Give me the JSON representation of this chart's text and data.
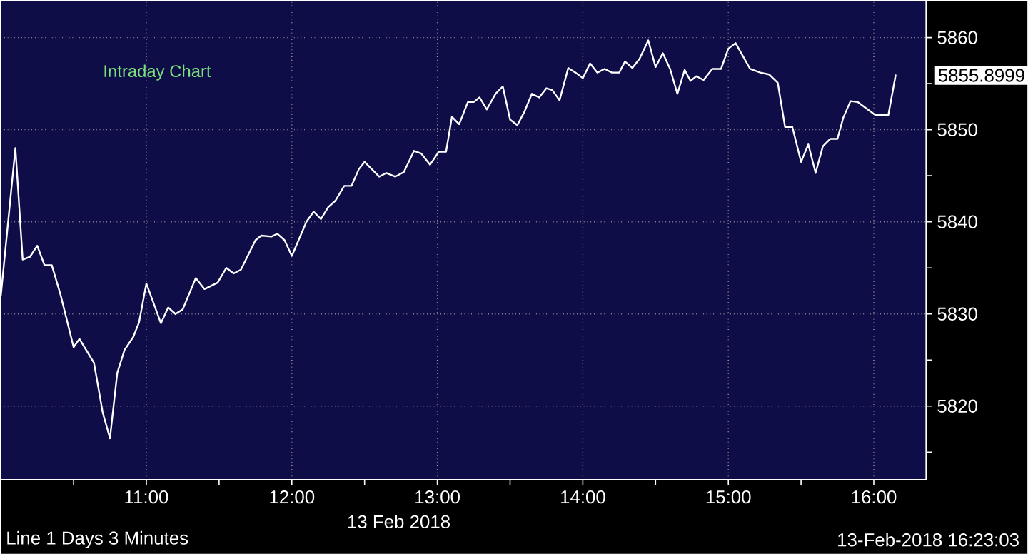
{
  "chart_data": {
    "type": "line",
    "title": "Intraday Chart",
    "xlabel": "13 Feb 2018",
    "annotations": [
      "5855.8999",
      "Line 1 Days 3 Minutes",
      "13-Feb-2018 16:23:03"
    ],
    "series": [
      {
        "color": "#ffffff",
        "x": [
          10.0,
          10.1,
          10.15,
          10.2,
          10.25,
          10.3,
          10.35,
          10.41,
          10.5,
          10.54,
          10.64,
          10.7,
          10.75,
          10.8,
          10.85,
          10.91,
          10.95,
          11.0,
          11.1,
          11.15,
          11.2,
          11.25,
          11.34,
          11.4,
          11.49,
          11.55,
          11.6,
          11.65,
          11.75,
          11.79,
          11.86,
          11.9,
          11.95,
          12.0,
          12.1,
          12.15,
          12.2,
          12.25,
          12.3,
          12.36,
          12.41,
          12.46,
          12.5,
          12.6,
          12.65,
          12.71,
          12.77,
          12.84,
          12.89,
          12.95,
          13.01,
          13.06,
          13.1,
          13.15,
          13.21,
          13.25,
          13.29,
          13.34,
          13.4,
          13.45,
          13.5,
          13.55,
          13.6,
          13.65,
          13.7,
          13.75,
          13.79,
          13.84,
          13.9,
          13.95,
          14.0,
          14.05,
          14.1,
          14.15,
          14.2,
          14.25,
          14.29,
          14.34,
          14.39,
          14.45,
          14.5,
          14.55,
          14.6,
          14.65,
          14.7,
          14.74,
          14.78,
          14.83,
          14.89,
          14.95,
          15.0,
          15.05,
          15.1,
          15.15,
          15.22,
          15.28,
          15.34,
          15.39,
          15.44,
          15.5,
          15.55,
          15.6,
          15.65,
          15.7,
          15.75,
          15.79,
          15.84,
          15.89,
          16.01,
          16.1,
          16.15
        ],
        "values": [
          5832.0,
          5848.0,
          5835.9,
          5836.2,
          5837.4,
          5835.3,
          5835.3,
          5832.1,
          5826.4,
          5827.3,
          5824.7,
          5819.3,
          5816.5,
          5823.6,
          5826.1,
          5827.5,
          5829.1,
          5833.3,
          5829.0,
          5830.7,
          5830.0,
          5830.5,
          5833.9,
          5832.7,
          5833.4,
          5835.0,
          5834.4,
          5834.8,
          5838.0,
          5838.5,
          5838.4,
          5838.7,
          5838.0,
          5836.3,
          5840.0,
          5841.1,
          5840.3,
          5841.6,
          5842.3,
          5843.9,
          5843.9,
          5845.7,
          5846.5,
          5844.9,
          5845.3,
          5844.9,
          5845.4,
          5847.7,
          5847.4,
          5846.2,
          5847.6,
          5847.6,
          5851.4,
          5850.6,
          5853.0,
          5853.0,
          5853.5,
          5852.2,
          5853.9,
          5854.7,
          5851.1,
          5850.5,
          5852.0,
          5853.9,
          5853.5,
          5854.5,
          5854.3,
          5853.2,
          5856.7,
          5856.2,
          5855.6,
          5857.2,
          5856.2,
          5856.6,
          5856.2,
          5856.2,
          5857.4,
          5856.7,
          5857.7,
          5859.7,
          5856.8,
          5858.3,
          5856.6,
          5853.9,
          5856.5,
          5855.3,
          5855.8,
          5855.4,
          5856.6,
          5856.6,
          5858.8,
          5859.4,
          5858.0,
          5856.6,
          5856.2,
          5856.0,
          5855.1,
          5850.3,
          5850.3,
          5846.5,
          5848.4,
          5845.3,
          5848.2,
          5849.0,
          5849.0,
          5851.3,
          5853.1,
          5853.0,
          5851.6,
          5851.6,
          5855.9
        ]
      }
    ],
    "xlim": [
      10,
      16.36
    ],
    "ylim": [
      5812,
      5864
    ],
    "xticks": [
      {
        "value": 10.5,
        "label": null
      },
      {
        "value": 11,
        "label": "11:00"
      },
      {
        "value": 11.5,
        "label": null
      },
      {
        "value": 12,
        "label": "12:00"
      },
      {
        "value": 12.5,
        "label": null
      },
      {
        "value": 13,
        "label": "13:00"
      },
      {
        "value": 13.5,
        "label": null
      },
      {
        "value": 14,
        "label": "14:00"
      },
      {
        "value": 14.5,
        "label": null
      },
      {
        "value": 15,
        "label": "15:00"
      },
      {
        "value": 15.5,
        "label": null
      },
      {
        "value": 16,
        "label": "16:00"
      }
    ],
    "yticks": [
      {
        "value": 5815,
        "label": null
      },
      5820,
      {
        "value": 5825,
        "label": null
      },
      5830,
      {
        "value": 5835,
        "label": null
      },
      5840,
      {
        "value": 5845,
        "label": null
      },
      5850,
      {
        "value": 5855,
        "label": null
      },
      5860
    ],
    "grid": true
  }
}
